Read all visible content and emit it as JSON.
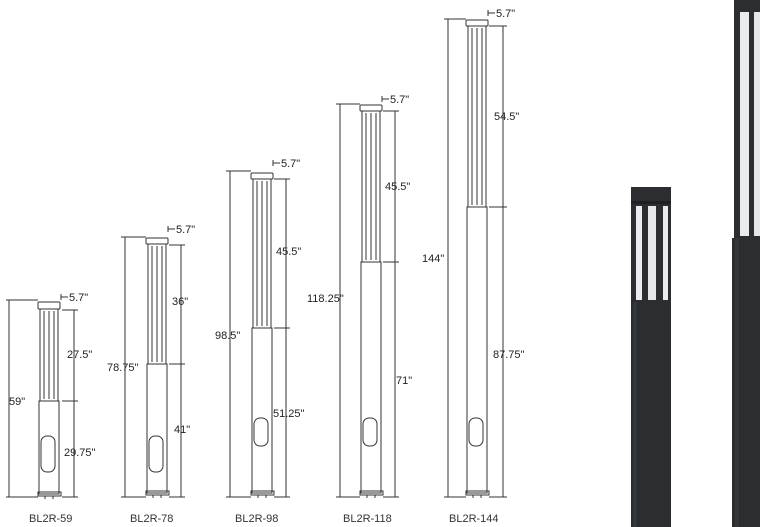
{
  "colors": {
    "line": "#333333",
    "dim": "#444444",
    "pole_dark": "#2b2d30",
    "lens": "#e9ebee"
  },
  "models": [
    {
      "name": "BL2R-59",
      "width": "5.7\"",
      "total": "59\"",
      "upper": "27.5\"",
      "lower": "29.75\""
    },
    {
      "name": "BL2R-78",
      "width": "5.7\"",
      "total": "78.75\"",
      "upper": "36\"",
      "lower": "41\""
    },
    {
      "name": "BL2R-98",
      "width": "5.7\"",
      "total": "98.5\"",
      "upper": "45.5\"",
      "lower": "51.25\""
    },
    {
      "name": "BL2R-118",
      "width": "5.7\"",
      "total": "118.25\"",
      "upper": "45.5\"",
      "lower": "71\""
    },
    {
      "name": "BL2R-144",
      "width": "5.7\"",
      "total": "144\"",
      "upper": "54.5\"",
      "lower": "87.75\""
    }
  ],
  "photos": [
    {
      "icon": "short-bollard-photo"
    },
    {
      "icon": "tall-bollard-photo"
    }
  ]
}
